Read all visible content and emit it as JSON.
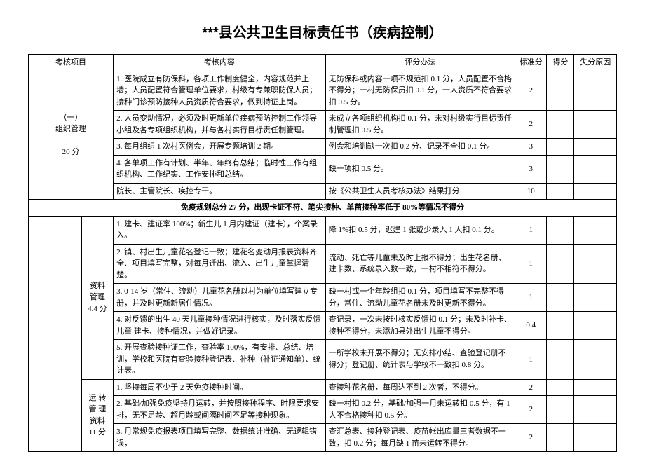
{
  "title": "***县公共卫生目标责任书（疾病控制）",
  "headers": {
    "item": "考核项目",
    "content": "考核内容",
    "method": "评分办法",
    "std": "标准分",
    "score": "得分",
    "reason": "失分原因"
  },
  "section1": {
    "label": "（一）\n组织管理\n\n20 分",
    "rows": [
      {
        "content": "1. 医院成立有防保科，各项工作制度健全，内容规范并上墙；人员配置符合管理单位要求，村级有专兼职防保人员；接种门诊预防接种人员资质符合要求，做到持证上岗。",
        "method": "无防保科或内容一项不规范扣 0.1 分，人员配置不合格不得分；一村无防保员扣 0.1 分，一人资质不符合要求扣 0.5 分。",
        "std": "2"
      },
      {
        "content": "2. 人员变动情况，必须及时更新单位疾病预防控制工作领导小组及各专项组织机构，并与各村实行目标责任制管理。",
        "method": "未成立各项组织机构扣 0.1 分，未对村级实行目标责任制管理扣 0.5 分。",
        "std": "2"
      },
      {
        "content": "3. 每月组织 1 次村医例会，开展专题培训 2 期。",
        "method": "例会和培训缺一次扣 0.2 分、记录不全扣 0.1 分。",
        "std": "3"
      },
      {
        "content": "4. 各单项工作有计划、半年、年终有总结；临时性工作有组织机构、工作纪实、工作安排和总结。",
        "method": "缺一项扣 0.5 分。",
        "std": "3"
      },
      {
        "content": "院长、主管院长、疾控专干。",
        "method": "按《公共卫生人员考核办法》结果打分",
        "std": "10"
      }
    ]
  },
  "midHeader": "免疫规划总分 27 分，出现卡证不符、笔尖接种、单苗接种率低于 80%等情况不得分",
  "section2a": {
    "label": "资料\n管理\n4.4 分",
    "rows": [
      {
        "content": "1. 建卡、建证率 100%；新生儿 1 月内建证（建卡），个案录入。",
        "method": "降 1%扣 0.5 分，迟建 1 张或少录入 1 人扣 0.1 分。",
        "std": "1"
      },
      {
        "content": "2. 镇、村出生儿童花名登记一致；建花名变动月报表资料齐全、项目填写完整，对每月迁出、流入、出生儿童掌握清楚。",
        "method": "流动、死亡等儿童未及时上报不得分；出生花名册、建卡数、系统录入数一致，一村不相符不得分。",
        "std": "1"
      },
      {
        "content": "3. 0-14 岁（常住、流动）儿童花名册以村为单位填写建立专册，并及时更新新居住情况。",
        "method": "缺一村或一个年龄组扣 0.1 分，项目填写不完整不得分，常住、流动儿童花名册未及时更新不得分。",
        "std": "1"
      },
      {
        "content": "4. 对反馈的出生 40 天儿童接种情况进行核实，及时落实反馈儿童 建卡、接种情况，并做好记录。",
        "method": "查记录，一次未按时核实反馈扣 0.1 分；未及时补卡、接种不得分，未添加县外出生儿童不得分。",
        "std": "0.4"
      },
      {
        "content": "5. 开展查验接种证工作，查验率 100%，有安排、总结、培训，学校和医院有查验接种登记表、补种（补证通知单）、统计表。",
        "method": "一所学校未开展不得分；无安排小结、查验登记册不得分；登记册、统计表与学校不一致扣 0.8 分。",
        "std": "1"
      }
    ]
  },
  "section2b": {
    "label": "运 转\n管 理\n资料\n11 分",
    "rows": [
      {
        "content": "1. 坚持每周不少于 2 天免疫接种时间。",
        "method": "查接种花名册，每周达不到 2 次者，不得分。",
        "std": "2"
      },
      {
        "content": "2. 基础/加强免疫坚持月运转，并按照接种程序、时限要求安排，无不足龄、超月龄或间隔时间不足等接种现象。",
        "method": "缺一村扣 0.2 分，基础/加强一月未运转扣 0.5 分，有 1 人不合格接种扣 0.5 分。",
        "std": "2"
      },
      {
        "content": "3. 月常规免疫报表项目填写完整、数据统计准确、无逻辑错误，",
        "method": "查汇总表、接种登记表、疫苗帐出库量三者数据不一致，扣 0.2 分；每月缺 1 苗未运转不得分。",
        "std": "2"
      }
    ]
  },
  "colors": {
    "background": "#ffffff",
    "text": "#000000",
    "border": "#000000"
  },
  "fontsize_body": 11,
  "fontsize_title": 20
}
